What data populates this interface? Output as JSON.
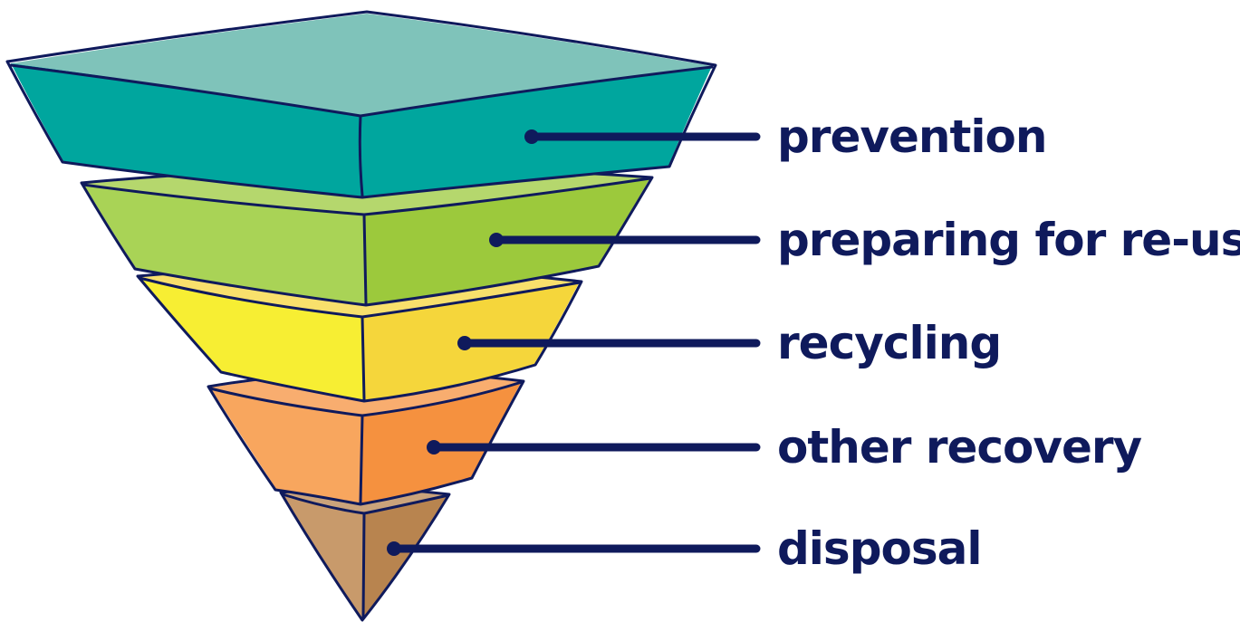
{
  "colors": {
    "ink": "#0f1a5c",
    "prevention": "#00a69e",
    "prevention_light": "#7fc3ba",
    "preparing_for_reuse": "#9cc93c",
    "preparing_for_reuse_light": "#a9d356",
    "recycling": "#f5d63b",
    "recycling_light": "#f7ee33",
    "other_recovery": "#f5913f",
    "other_recovery_light": "#f8a65e",
    "disposal": "#b8844f",
    "disposal_light": "#c89a6b"
  },
  "layers": [
    {
      "id": "prevention",
      "label": "prevention"
    },
    {
      "id": "preparing-for-reuse",
      "label": "preparing for re-use"
    },
    {
      "id": "recycling",
      "label": "recycling"
    },
    {
      "id": "other-recovery",
      "label": "other recovery"
    },
    {
      "id": "disposal",
      "label": "disposal"
    }
  ]
}
